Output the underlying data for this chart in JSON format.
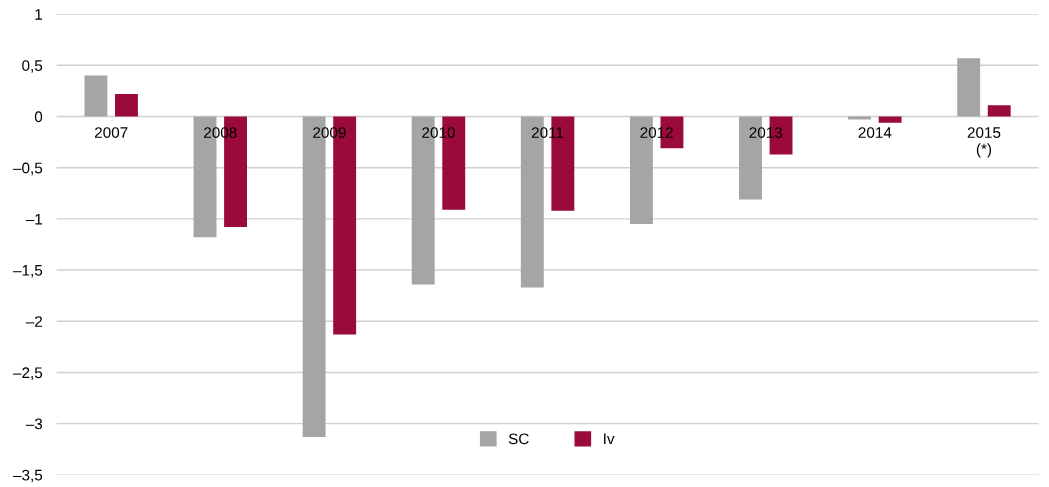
{
  "chart_data": {
    "type": "bar",
    "categories": [
      "2007",
      "2008",
      "2009",
      "2010",
      "2011",
      "2012",
      "2013",
      "2014",
      "2015\n(*)"
    ],
    "series": [
      {
        "name": "SC",
        "color": "#a5a5a5",
        "values": [
          0.4,
          -1.18,
          -3.13,
          -1.64,
          -1.67,
          -1.05,
          -0.81,
          -0.03,
          0.57
        ]
      },
      {
        "name": "Iv",
        "color": "#9b0b3a",
        "values": [
          0.22,
          -1.08,
          -2.13,
          -0.91,
          -0.92,
          -0.31,
          -0.37,
          -0.06,
          0.11
        ]
      }
    ],
    "ylim": [
      -3.5,
      1
    ],
    "yticks": [
      {
        "value": 1,
        "label": "1"
      },
      {
        "value": 0.5,
        "label": "0,5"
      },
      {
        "value": 0,
        "label": "0"
      },
      {
        "value": -0.5,
        "label": "–0,5"
      },
      {
        "value": -1,
        "label": "–1"
      },
      {
        "value": -1.5,
        "label": "–1,5"
      },
      {
        "value": -2,
        "label": "–2"
      },
      {
        "value": -2.5,
        "label": "–2,5"
      },
      {
        "value": -3,
        "label": "–3"
      },
      {
        "value": -3.5,
        "label": "–3,5"
      }
    ],
    "grid": "y",
    "legend": "bottom"
  }
}
